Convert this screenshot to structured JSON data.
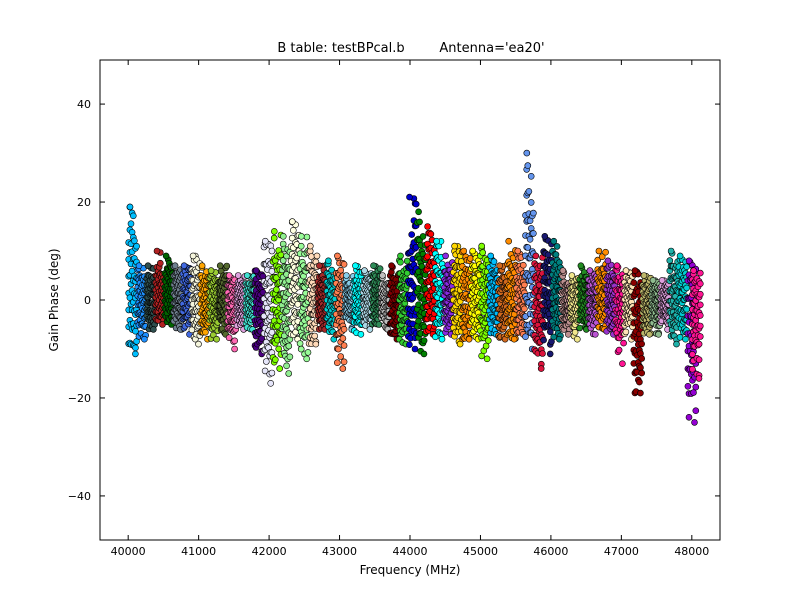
{
  "chart_data": {
    "type": "scatter",
    "title_left": "B table: testBPcal.b",
    "title_right": "Antenna='ea20'",
    "xlabel": "Frequency (MHz)",
    "ylabel": "Gain Phase (deg)",
    "xlim": [
      39600,
      48400
    ],
    "ylim": [
      -49,
      49
    ],
    "xticks": [
      40000,
      41000,
      42000,
      43000,
      44000,
      45000,
      46000,
      47000,
      48000
    ],
    "yticks": [
      -40,
      -20,
      0,
      20,
      40
    ],
    "tick_labels_y": [
      "−40",
      "−20",
      "0",
      "20",
      "40"
    ],
    "grid": false,
    "legend": "none",
    "marker": "circle",
    "spw_width_mhz": 128,
    "series": [
      {
        "x0": 40000,
        "color": "#00bfff",
        "min": -11,
        "max": 19
      },
      {
        "x0": 40128,
        "color": "#1e90ff",
        "min": -8,
        "max": 7
      },
      {
        "x0": 40256,
        "color": "#2f4f4f",
        "min": -6,
        "max": 7
      },
      {
        "x0": 40384,
        "color": "#b22222",
        "min": -5,
        "max": 10
      },
      {
        "x0": 40512,
        "color": "#006400",
        "min": -5,
        "max": 9
      },
      {
        "x0": 40640,
        "color": "#708090",
        "min": -6,
        "max": 7
      },
      {
        "x0": 40768,
        "color": "#4169e1",
        "min": -7,
        "max": 7
      },
      {
        "x0": 40896,
        "color": "#f5f5dc",
        "min": -9,
        "max": 9
      },
      {
        "x0": 41024,
        "color": "#ffa500",
        "min": -8,
        "max": 7
      },
      {
        "x0": 41152,
        "color": "#9acd32",
        "min": -8,
        "max": 6
      },
      {
        "x0": 41280,
        "color": "#556b2f",
        "min": -7,
        "max": 7
      },
      {
        "x0": 41408,
        "color": "#ff69b4",
        "min": -10,
        "max": 5
      },
      {
        "x0": 41536,
        "color": "#dda0dd",
        "min": -6,
        "max": 5
      },
      {
        "x0": 41664,
        "color": "#40e0d0",
        "min": -6,
        "max": 5
      },
      {
        "x0": 41792,
        "color": "#4b0082",
        "min": -11,
        "max": 6
      },
      {
        "x0": 41920,
        "color": "#e6e6fa",
        "min": -17,
        "max": 12
      },
      {
        "x0": 42048,
        "color": "#7fff00",
        "min": -14,
        "max": 14
      },
      {
        "x0": 42176,
        "color": "#90ee90",
        "min": -15,
        "max": 13
      },
      {
        "x0": 42304,
        "color": "#ffffe0",
        "min": -8,
        "max": 16
      },
      {
        "x0": 42432,
        "color": "#98fb98",
        "min": -12,
        "max": 13
      },
      {
        "x0": 42560,
        "color": "#ffdab9",
        "min": -9,
        "max": 11
      },
      {
        "x0": 42688,
        "color": "#a52a2a",
        "min": -6,
        "max": 7
      },
      {
        "x0": 42816,
        "color": "#00ced1",
        "min": -8,
        "max": 8
      },
      {
        "x0": 42944,
        "color": "#ff7f50",
        "min": -14,
        "max": 9
      },
      {
        "x0": 43072,
        "color": "#87ceeb",
        "min": -6,
        "max": 5
      },
      {
        "x0": 43200,
        "color": "#00ffff",
        "min": -7,
        "max": 7
      },
      {
        "x0": 43328,
        "color": "#add8e6",
        "min": -6,
        "max": 6
      },
      {
        "x0": 43456,
        "color": "#2e8b57",
        "min": -5,
        "max": 7
      },
      {
        "x0": 43584,
        "color": "#c0c0c0",
        "min": -6,
        "max": 5
      },
      {
        "x0": 43712,
        "color": "#800000",
        "min": -8,
        "max": 7
      },
      {
        "x0": 43840,
        "color": "#32cd32",
        "min": -9,
        "max": 9
      },
      {
        "x0": 43968,
        "color": "#0000cd",
        "min": -10,
        "max": 21
      },
      {
        "x0": 44096,
        "color": "#008000",
        "min": -11,
        "max": 18
      },
      {
        "x0": 44224,
        "color": "#ff0000",
        "min": -7,
        "max": 15
      },
      {
        "x0": 44352,
        "color": "#00ffff",
        "min": -8,
        "max": 12
      },
      {
        "x0": 44480,
        "color": "#8a2be2",
        "min": -7,
        "max": 9
      },
      {
        "x0": 44608,
        "color": "#ffd700",
        "min": -9,
        "max": 11
      },
      {
        "x0": 44736,
        "color": "#ff8c00",
        "min": -8,
        "max": 10
      },
      {
        "x0": 44864,
        "color": "#ffff00",
        "min": -8,
        "max": 10
      },
      {
        "x0": 44992,
        "color": "#7fff00",
        "min": -12,
        "max": 11
      },
      {
        "x0": 45120,
        "color": "#00bfff",
        "min": -7,
        "max": 9
      },
      {
        "x0": 45248,
        "color": "#d2691e",
        "min": -8,
        "max": 7
      },
      {
        "x0": 45376,
        "color": "#ff8c00",
        "min": -8,
        "max": 12
      },
      {
        "x0": 45504,
        "color": "#ff7f50",
        "min": -7,
        "max": 10
      },
      {
        "x0": 45632,
        "color": "#6495ed",
        "min": -10,
        "max": 30
      },
      {
        "x0": 45760,
        "color": "#dc143c",
        "min": -14,
        "max": 9
      },
      {
        "x0": 45888,
        "color": "#191970",
        "min": -11,
        "max": 13
      },
      {
        "x0": 46016,
        "color": "#008080",
        "min": -8,
        "max": 12
      },
      {
        "x0": 46144,
        "color": "#bc8f8f",
        "min": -7,
        "max": 6
      },
      {
        "x0": 46272,
        "color": "#f0e68c",
        "min": -8,
        "max": 5
      },
      {
        "x0": 46400,
        "color": "#228b22",
        "min": -6,
        "max": 7
      },
      {
        "x0": 46528,
        "color": "#ba55d3",
        "min": -7,
        "max": 6
      },
      {
        "x0": 46656,
        "color": "#ff8c00",
        "min": -6,
        "max": 10
      },
      {
        "x0": 46784,
        "color": "#9932cc",
        "min": -7,
        "max": 8
      },
      {
        "x0": 46912,
        "color": "#ff1493",
        "min": -13,
        "max": 7
      },
      {
        "x0": 47040,
        "color": "#ffe4b5",
        "min": -8,
        "max": 6
      },
      {
        "x0": 47168,
        "color": "#8b0000",
        "min": -19,
        "max": 6
      },
      {
        "x0": 47296,
        "color": "#bdb76b",
        "min": -7,
        "max": 5
      },
      {
        "x0": 47424,
        "color": "#8fbc8f",
        "min": -7,
        "max": 4
      },
      {
        "x0": 47552,
        "color": "#dda0dd",
        "min": -6,
        "max": 4
      },
      {
        "x0": 47680,
        "color": "#20b2aa",
        "min": -9,
        "max": 10
      },
      {
        "x0": 47808,
        "color": "#00ced1",
        "min": -8,
        "max": 9
      },
      {
        "x0": 47936,
        "color": "#9400d3",
        "min": -25,
        "max": 8
      },
      {
        "x0": 48000,
        "color": "#ff1493",
        "min": -16,
        "max": 6
      }
    ]
  }
}
